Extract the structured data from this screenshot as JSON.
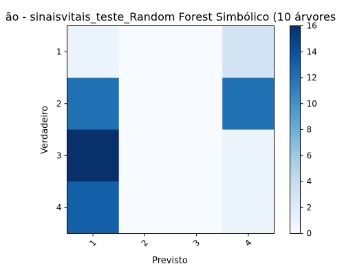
{
  "chart_data": {
    "type": "heatmap",
    "title": "ão - sinaisvitais_teste_Random Forest Simbólico (10 árvores",
    "xlabel": "Previsto",
    "ylabel": "Verdadeiro",
    "x_categories": [
      "1",
      "2",
      "3",
      "4"
    ],
    "y_categories": [
      "1",
      "2",
      "3",
      "4"
    ],
    "values": [
      [
        1,
        0,
        0,
        3
      ],
      [
        12,
        0,
        0,
        12
      ],
      [
        16,
        0,
        0,
        1
      ],
      [
        13,
        0,
        0,
        1
      ]
    ],
    "colormap": "Blues",
    "colorbar": {
      "min": 0,
      "max": 16,
      "ticks": [
        0,
        2,
        4,
        6,
        8,
        10,
        12,
        14,
        16
      ]
    },
    "grid": false
  }
}
